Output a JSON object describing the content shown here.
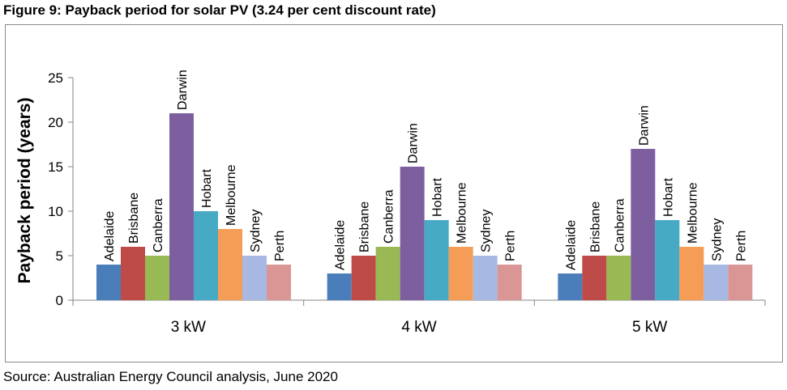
{
  "figure": {
    "title": "Figure 9: Payback period for solar PV (3.24 per cent discount rate)",
    "source": "Source: Australian Energy Council analysis, June 2020"
  },
  "chart_data": {
    "type": "bar",
    "title": "",
    "xlabel": "",
    "ylabel": "Payback period (years)",
    "ylim": [
      0,
      25
    ],
    "yticks": [
      "0",
      "5",
      "10",
      "15",
      "20",
      "25"
    ],
    "grid": false,
    "legend": "none",
    "categories": [
      "3 kW",
      "4 kW",
      "5 kW"
    ],
    "series": [
      {
        "name": "Adelaide",
        "color": "#4a7ebb",
        "values": [
          4,
          3,
          3
        ]
      },
      {
        "name": "Brisbane",
        "color": "#be4b48",
        "values": [
          6,
          5,
          5
        ]
      },
      {
        "name": "Canberra",
        "color": "#98b954",
        "values": [
          5,
          6,
          5
        ]
      },
      {
        "name": "Darwin",
        "color": "#7d5fa0",
        "values": [
          21,
          15,
          17
        ]
      },
      {
        "name": "Hobart",
        "color": "#46aac5",
        "values": [
          10,
          9,
          9
        ]
      },
      {
        "name": "Melbourne",
        "color": "#f59d56",
        "values": [
          8,
          6,
          6
        ]
      },
      {
        "name": "Sydney",
        "color": "#a7b9e3",
        "values": [
          5,
          5,
          4
        ]
      },
      {
        "name": "Perth",
        "color": "#d99695",
        "values": [
          4,
          4,
          4
        ]
      }
    ]
  }
}
